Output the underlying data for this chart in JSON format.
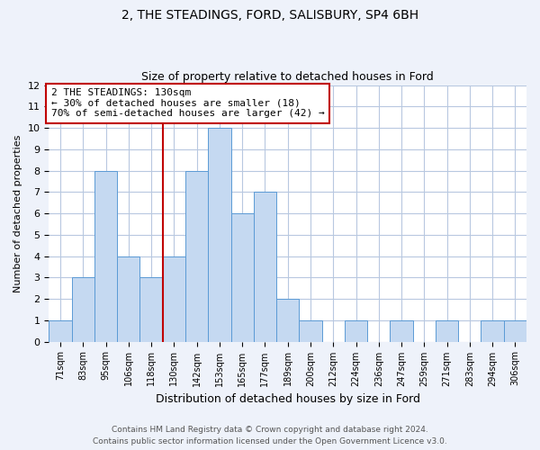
{
  "title": "2, THE STEADINGS, FORD, SALISBURY, SP4 6BH",
  "subtitle": "Size of property relative to detached houses in Ford",
  "xlabel": "Distribution of detached houses by size in Ford",
  "ylabel": "Number of detached properties",
  "bin_labels": [
    "71sqm",
    "83sqm",
    "95sqm",
    "106sqm",
    "118sqm",
    "130sqm",
    "142sqm",
    "153sqm",
    "165sqm",
    "177sqm",
    "189sqm",
    "200sqm",
    "212sqm",
    "224sqm",
    "236sqm",
    "247sqm",
    "259sqm",
    "271sqm",
    "283sqm",
    "294sqm",
    "306sqm"
  ],
  "bar_heights": [
    1,
    3,
    8,
    4,
    3,
    4,
    8,
    10,
    6,
    7,
    2,
    1,
    0,
    1,
    0,
    1,
    0,
    1,
    0,
    1,
    1
  ],
  "bar_color": "#c5d9f1",
  "bar_edge_color": "#5b9bd5",
  "vline_color": "#c00000",
  "ylim": [
    0,
    12
  ],
  "yticks": [
    0,
    1,
    2,
    3,
    4,
    5,
    6,
    7,
    8,
    9,
    10,
    11,
    12
  ],
  "annotation_line1": "2 THE STEADINGS: 130sqm",
  "annotation_line2": "← 30% of detached houses are smaller (18)",
  "annotation_line3": "70% of semi-detached houses are larger (42) →",
  "annotation_box_color": "white",
  "annotation_box_edge_color": "#c00000",
  "footer_line1": "Contains HM Land Registry data © Crown copyright and database right 2024.",
  "footer_line2": "Contains public sector information licensed under the Open Government Licence v3.0.",
  "background_color": "#eef2fa",
  "plot_bg_color": "white",
  "grid_color": "#b8c8e0"
}
